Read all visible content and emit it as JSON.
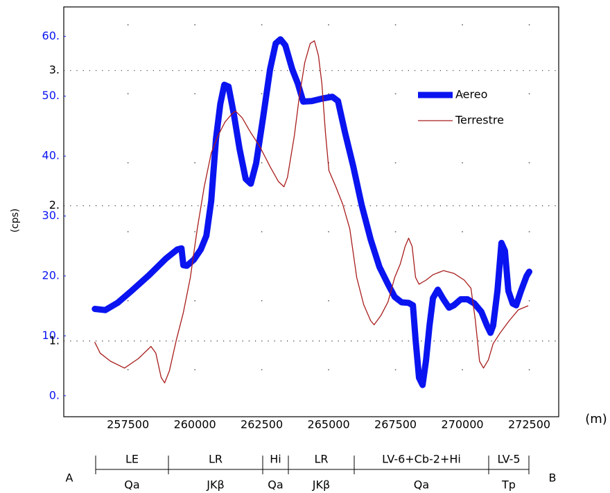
{
  "chart_data": {
    "type": "line",
    "x_label": "(m)",
    "y_label": "(cps)",
    "xlim": [
      255100,
      273600
    ],
    "xticks": [
      257500,
      260000,
      262500,
      265000,
      267500,
      270000,
      272500
    ],
    "ylim": [
      -3.5,
      64.9
    ],
    "yticks": [
      {
        "value": 0,
        "label": "0."
      },
      {
        "value": 10,
        "label": "10."
      },
      {
        "value": 20,
        "label": "20."
      },
      {
        "value": 30,
        "label": "30."
      },
      {
        "value": 40,
        "label": "40."
      },
      {
        "value": 50,
        "label": "50."
      },
      {
        "value": 60,
        "label": "60."
      }
    ],
    "y2lim": [
      0.44,
      3.47
    ],
    "y2ticks": [
      {
        "value": 1,
        "label": "1."
      },
      {
        "value": 2,
        "label": "2."
      },
      {
        "value": 3,
        "label": "3."
      }
    ],
    "grid": true,
    "legend": "upper right",
    "series": [
      {
        "name": "Aereo",
        "color": "#0a14f0",
        "x": [
          256260,
          256650,
          257110,
          257630,
          258280,
          258920,
          259340,
          259500,
          259570,
          259700,
          259960,
          260220,
          260430,
          260610,
          260790,
          260950,
          261100,
          261260,
          261460,
          261670,
          261900,
          262090,
          262290,
          262550,
          262810,
          263020,
          263200,
          263380,
          263640,
          263850,
          264050,
          264370,
          264750,
          265140,
          265350,
          265610,
          265920,
          266230,
          266570,
          266900,
          267220,
          267470,
          267730,
          267990,
          268150,
          268250,
          268380,
          268510,
          268640,
          268770,
          268900,
          269080,
          269290,
          269500,
          269680,
          269940,
          270190,
          270450,
          270710,
          270920,
          271050,
          271150,
          271310,
          271460,
          271590,
          271720,
          271880,
          272010,
          272190,
          272400,
          272500
        ],
        "values": [
          14.5,
          14.3,
          15.5,
          17.5,
          20.1,
          22.9,
          24.4,
          24.6,
          21.8,
          21.7,
          22.7,
          24.4,
          26.7,
          32.5,
          42.9,
          48.7,
          51.9,
          51.6,
          46.9,
          41.2,
          36.2,
          35.4,
          38.8,
          46.4,
          54.5,
          58.8,
          59.5,
          58.5,
          54.5,
          52.1,
          49.1,
          49.2,
          49.6,
          49.9,
          49.2,
          44.0,
          38.3,
          31.9,
          26.1,
          21.5,
          18.6,
          16.5,
          15.6,
          15.5,
          15.1,
          9.4,
          3.0,
          1.8,
          5.9,
          11.7,
          16.3,
          17.7,
          16.1,
          14.7,
          15.1,
          16.1,
          16.1,
          15.4,
          14.0,
          11.7,
          10.5,
          11.7,
          17.5,
          25.5,
          24.2,
          17.5,
          15.4,
          15.1,
          17.5,
          20.0,
          20.7
        ]
      },
      {
        "name": "Terrestre",
        "color": "#a81c1c",
        "axis": "y2",
        "x": [
          256260,
          256460,
          256850,
          257370,
          257890,
          258360,
          258540,
          258740,
          258870,
          259050,
          259310,
          259570,
          259830,
          260090,
          260350,
          260610,
          260870,
          261130,
          261390,
          261520,
          261770,
          262090,
          262420,
          262810,
          263120,
          263330,
          263460,
          263720,
          263900,
          264110,
          264310,
          264470,
          264620,
          264750,
          264880,
          265010,
          265270,
          265530,
          265790,
          266050,
          266310,
          266570,
          266700,
          266960,
          267220,
          267470,
          267680,
          267860,
          267990,
          268120,
          268250,
          268380,
          268640,
          268900,
          269290,
          269680,
          270070,
          270320,
          270480,
          270640,
          270790,
          270970,
          271150,
          271410,
          271750,
          272090,
          272450
        ],
        "values": [
          0.99,
          0.91,
          0.85,
          0.8,
          0.87,
          0.96,
          0.91,
          0.73,
          0.69,
          0.78,
          1.01,
          1.21,
          1.47,
          1.83,
          2.14,
          2.39,
          2.52,
          2.62,
          2.68,
          2.7,
          2.65,
          2.54,
          2.44,
          2.29,
          2.18,
          2.14,
          2.21,
          2.52,
          2.8,
          3.06,
          3.2,
          3.22,
          3.11,
          2.9,
          2.54,
          2.26,
          2.14,
          2.01,
          1.83,
          1.47,
          1.27,
          1.15,
          1.12,
          1.19,
          1.29,
          1.47,
          1.57,
          1.7,
          1.76,
          1.7,
          1.47,
          1.42,
          1.45,
          1.49,
          1.52,
          1.5,
          1.45,
          1.39,
          1.16,
          0.85,
          0.8,
          0.86,
          0.98,
          1.06,
          1.15,
          1.23,
          1.26
        ]
      }
    ],
    "start_label": "A",
    "end_label": "B",
    "sections": [
      {
        "unit": "LE",
        "rock": "Qa"
      },
      {
        "unit": "LR",
        "rock": "JKβ"
      },
      {
        "unit": "Hi",
        "rock": "Qa"
      },
      {
        "unit": "LR",
        "rock": "JKβ"
      },
      {
        "unit": "LV-6+Cb-2+Hi",
        "rock": "Qa"
      },
      {
        "unit": "LV-5",
        "rock": "Tp"
      }
    ]
  }
}
